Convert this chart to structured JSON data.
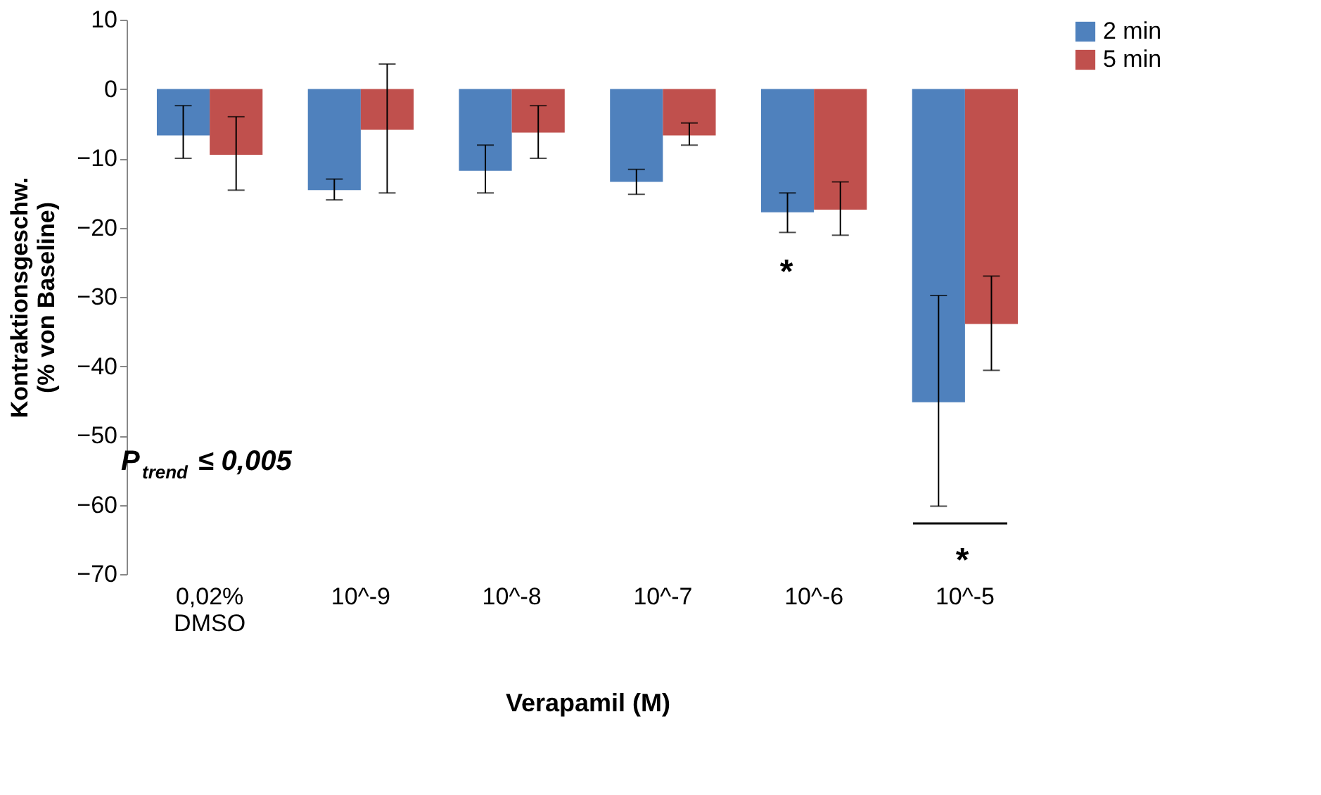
{
  "chart_data": {
    "type": "bar",
    "xlabel": "Verapamil (M)",
    "ylabel": "Kontraktionsgeschw. (% von Baseline)",
    "categories": [
      "0,02% DMSO",
      "10^-9",
      "10^-8",
      "10^-7",
      "10^-6",
      "10^-5"
    ],
    "series": [
      {
        "name": "2 min",
        "color": "#4f81bd",
        "values": [
          -6.7,
          -14.6,
          -11.8,
          -13.4,
          -17.8,
          -45.2
        ],
        "errors": [
          [
            -10,
            -2.4
          ],
          [
            -16,
            -13
          ],
          [
            -15,
            -8.1
          ],
          [
            -15.2,
            -11.6
          ],
          [
            -20.7,
            -15
          ],
          [
            -60.2,
            -29.8
          ]
        ]
      },
      {
        "name": "5 min",
        "color": "#c0504d",
        "values": [
          -9.5,
          -5.9,
          -6.3,
          -6.7,
          -17.4,
          -33.9
        ],
        "errors": [
          [
            -14.6,
            -4
          ],
          [
            -15,
            3.6
          ],
          [
            -10,
            -2.4
          ],
          [
            -8.1,
            -4.9
          ],
          [
            -21.1,
            -13.4
          ],
          [
            -40.6,
            -27
          ]
        ]
      }
    ],
    "ylim": [
      -70,
      10
    ],
    "yticks": [
      -70,
      -60,
      -50,
      -40,
      -30,
      -20,
      -10,
      0,
      10
    ],
    "grid": false,
    "legend": "right",
    "annotations": [
      "P$_{trend}$ ≤ 0,005",
      "*",
      "*"
    ]
  }
}
